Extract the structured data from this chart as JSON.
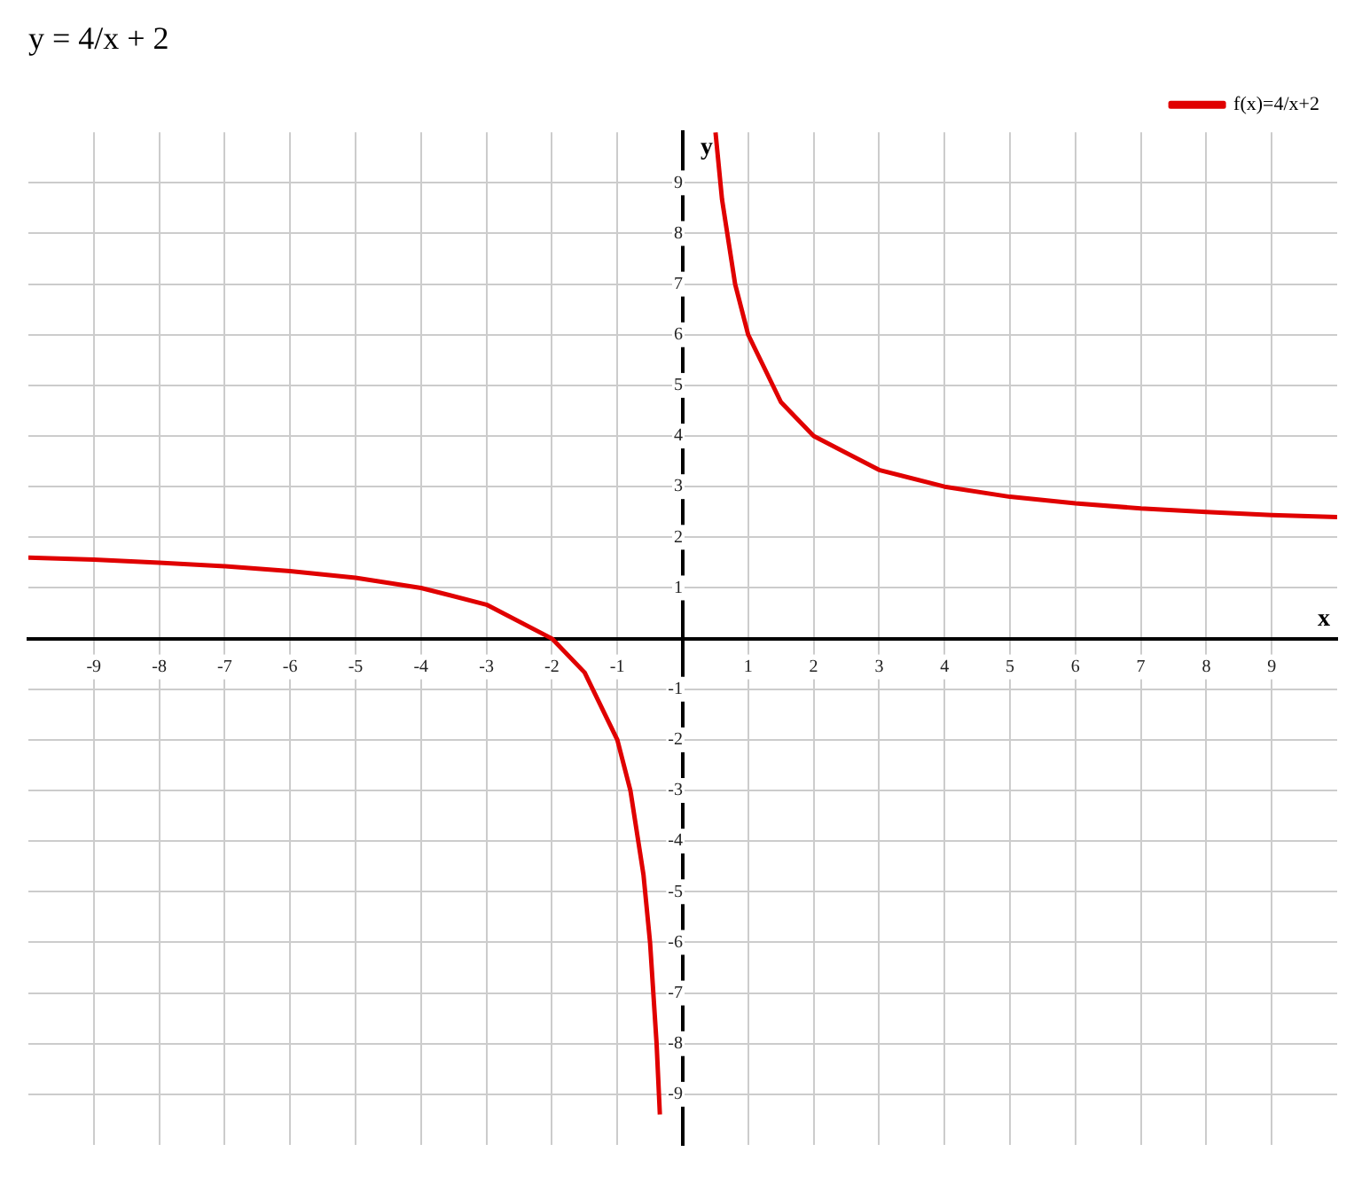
{
  "chart_data": {
    "type": "line",
    "title": "y = 4/x + 2",
    "xlabel": "x",
    "ylabel": "y",
    "xlim": [
      -10,
      10
    ],
    "ylim": [
      -10,
      10
    ],
    "xticks": [
      -9,
      -8,
      -7,
      -6,
      -5,
      -4,
      -3,
      -2,
      -1,
      1,
      2,
      3,
      4,
      5,
      6,
      7,
      8,
      9
    ],
    "yticks": [
      -9,
      -8,
      -7,
      -6,
      -5,
      -4,
      -3,
      -2,
      -1,
      1,
      2,
      3,
      4,
      5,
      6,
      7,
      8,
      9
    ],
    "grid": true,
    "legend": "top right",
    "marker": "none",
    "line_style": "solid",
    "series": [
      {
        "name": "f(x)=4/x+2",
        "color": "#e00000",
        "x": [
          -10,
          -9,
          -8,
          -7,
          -6,
          -5,
          -4,
          -3,
          -2,
          -1.5,
          -1,
          -0.8,
          -0.6,
          -0.5,
          -0.4,
          -0.35,
          0,
          0.5,
          0.6,
          0.8,
          1,
          1.5,
          2,
          3,
          4,
          5,
          6,
          7,
          8,
          9,
          10
        ],
        "values": [
          1.6,
          1.56,
          1.5,
          1.43,
          1.33,
          1.2,
          1,
          0.67,
          0,
          -0.67,
          -2,
          -3,
          -4.67,
          -6,
          -8,
          -9.4,
          null,
          10,
          8.67,
          7,
          6,
          4.67,
          4,
          3.33,
          3,
          2.8,
          2.67,
          2.57,
          2.5,
          2.44,
          2.4
        ]
      }
    ]
  }
}
